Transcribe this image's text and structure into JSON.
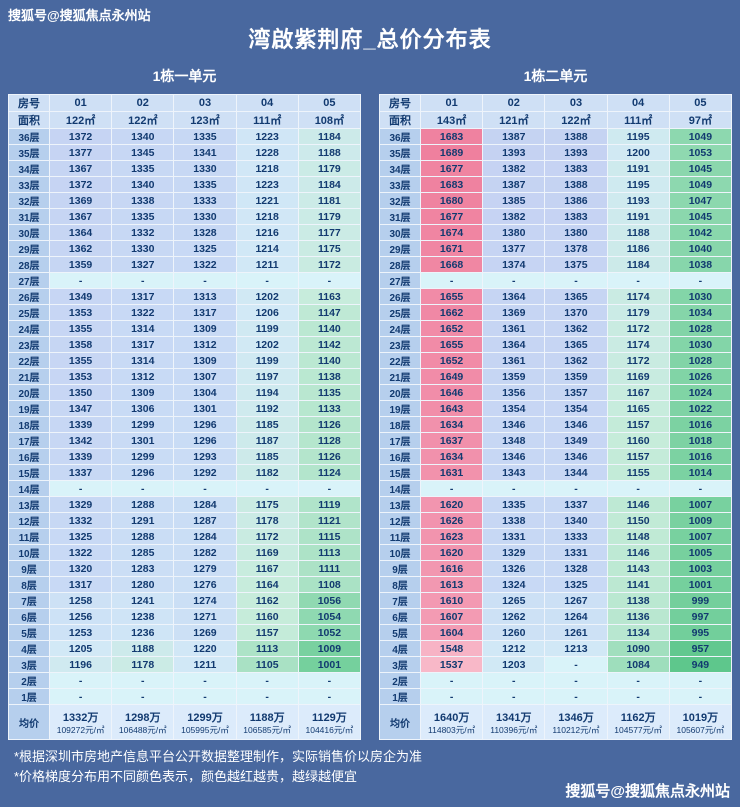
{
  "page": {
    "background": "#49689f",
    "watermark_top": "搜狐号@搜狐焦点永州站",
    "watermark_bottom": "搜狐号@搜狐焦点永州站",
    "title": "湾啟紫荆府_总价分布表",
    "notes": [
      "*根据深圳市房地产信息平台公开数据整理制作，实际销售价以房企为准",
      "*价格梯度分布用不同颜色表示，颜色越红越贵，越绿越便宜"
    ]
  },
  "heatmap": {
    "empty_color": "#d9f3f9",
    "stops": [
      [
        949,
        "#5ec78c"
      ],
      [
        1010,
        "#79d1a0"
      ],
      [
        1060,
        "#92dab3"
      ],
      [
        1110,
        "#abe2c6"
      ],
      [
        1160,
        "#c6ecda"
      ],
      [
        1205,
        "#d2e9f6"
      ],
      [
        1310,
        "#c8daf5"
      ],
      [
        1430,
        "#c4cff1"
      ],
      [
        1535,
        "#f8b9c9"
      ],
      [
        1620,
        "#f295af"
      ],
      [
        1690,
        "#ef809e"
      ]
    ]
  },
  "chart_data": [
    {
      "type": "table",
      "style": "price-heatmap",
      "subtitle": "1栋一单元",
      "row_header": "房号",
      "area_header": "面积",
      "units": [
        "01",
        "02",
        "03",
        "04",
        "05"
      ],
      "areas": [
        "122㎡",
        "122㎡",
        "123㎡",
        "111㎡",
        "108㎡"
      ],
      "floors": [
        "36层",
        "35层",
        "34层",
        "33层",
        "32层",
        "31层",
        "30层",
        "29层",
        "28层",
        "27层",
        "26层",
        "25层",
        "24层",
        "23层",
        "22层",
        "21层",
        "20层",
        "19层",
        "18层",
        "17层",
        "16层",
        "15层",
        "14层",
        "13层",
        "12层",
        "11层",
        "10层",
        "9层",
        "8层",
        "7层",
        "6层",
        "5层",
        "4层",
        "3层",
        "2层",
        "1层"
      ],
      "rows": [
        [
          1372,
          1340,
          1335,
          1223,
          1184
        ],
        [
          1377,
          1345,
          1341,
          1228,
          1188
        ],
        [
          1367,
          1335,
          1330,
          1218,
          1179
        ],
        [
          1372,
          1340,
          1335,
          1223,
          1184
        ],
        [
          1369,
          1338,
          1333,
          1221,
          1181
        ],
        [
          1367,
          1335,
          1330,
          1218,
          1179
        ],
        [
          1364,
          1332,
          1328,
          1216,
          1177
        ],
        [
          1362,
          1330,
          1325,
          1214,
          1175
        ],
        [
          1359,
          1327,
          1322,
          1211,
          1172
        ],
        [
          "-",
          "-",
          "-",
          "-",
          "-"
        ],
        [
          1349,
          1317,
          1313,
          1202,
          1163
        ],
        [
          1353,
          1322,
          1317,
          1206,
          1147
        ],
        [
          1355,
          1314,
          1309,
          1199,
          1140
        ],
        [
          1358,
          1317,
          1312,
          1202,
          1142
        ],
        [
          1355,
          1314,
          1309,
          1199,
          1140
        ],
        [
          1353,
          1312,
          1307,
          1197,
          1138
        ],
        [
          1350,
          1309,
          1304,
          1194,
          1135
        ],
        [
          1347,
          1306,
          1301,
          1192,
          1133
        ],
        [
          1339,
          1299,
          1296,
          1185,
          1126
        ],
        [
          1342,
          1301,
          1296,
          1187,
          1128
        ],
        [
          1339,
          1299,
          1293,
          1185,
          1126
        ],
        [
          1337,
          1296,
          1292,
          1182,
          1124
        ],
        [
          "-",
          "-",
          "-",
          "-",
          "-"
        ],
        [
          1329,
          1288,
          1284,
          1175,
          1119
        ],
        [
          1332,
          1291,
          1287,
          1178,
          1121
        ],
        [
          1325,
          1288,
          1284,
          1172,
          1115
        ],
        [
          1322,
          1285,
          1282,
          1169,
          1113
        ],
        [
          1320,
          1283,
          1279,
          1167,
          1111
        ],
        [
          1317,
          1280,
          1276,
          1164,
          1108
        ],
        [
          1258,
          1241,
          1274,
          1162,
          1056
        ],
        [
          1256,
          1238,
          1271,
          1160,
          1054
        ],
        [
          1253,
          1236,
          1269,
          1157,
          1052
        ],
        [
          1205,
          1188,
          1220,
          1113,
          1009
        ],
        [
          1196,
          1178,
          1211,
          1105,
          1001
        ],
        [
          "-",
          "-",
          "-",
          "-",
          "-"
        ],
        [
          "-",
          "-",
          "-",
          "-",
          "-"
        ]
      ],
      "average_label": "均价",
      "average_prices": [
        "1332万",
        "1298万",
        "1299万",
        "1188万",
        "1129万"
      ],
      "average_unit_prices": [
        "109272元/㎡",
        "106488元/㎡",
        "105995元/㎡",
        "106585元/㎡",
        "104416元/㎡"
      ]
    },
    {
      "type": "table",
      "style": "price-heatmap",
      "subtitle": "1栋二单元",
      "row_header": "房号",
      "area_header": "面积",
      "units": [
        "01",
        "02",
        "03",
        "04",
        "05"
      ],
      "areas": [
        "143㎡",
        "121㎡",
        "122㎡",
        "111㎡",
        "97㎡"
      ],
      "floors": [
        "36层",
        "35层",
        "34层",
        "33层",
        "32层",
        "31层",
        "30层",
        "29层",
        "28层",
        "27层",
        "26层",
        "25层",
        "24层",
        "23层",
        "22层",
        "21层",
        "20层",
        "19层",
        "18层",
        "17层",
        "16层",
        "15层",
        "14层",
        "13层",
        "12层",
        "11层",
        "10层",
        "9层",
        "8层",
        "7层",
        "6层",
        "5层",
        "4层",
        "3层",
        "2层",
        "1层"
      ],
      "rows": [
        [
          1683,
          1387,
          1388,
          1195,
          1049
        ],
        [
          1689,
          1393,
          1393,
          1200,
          1053
        ],
        [
          1677,
          1382,
          1383,
          1191,
          1045
        ],
        [
          1683,
          1387,
          1388,
          1195,
          1049
        ],
        [
          1680,
          1385,
          1386,
          1193,
          1047
        ],
        [
          1677,
          1382,
          1383,
          1191,
          1045
        ],
        [
          1674,
          1380,
          1380,
          1188,
          1042
        ],
        [
          1671,
          1377,
          1378,
          1186,
          1040
        ],
        [
          1668,
          1374,
          1375,
          1184,
          1038
        ],
        [
          "-",
          "-",
          "-",
          "-",
          "-"
        ],
        [
          1655,
          1364,
          1365,
          1174,
          1030
        ],
        [
          1662,
          1369,
          1370,
          1179,
          1034
        ],
        [
          1652,
          1361,
          1362,
          1172,
          1028
        ],
        [
          1655,
          1364,
          1365,
          1174,
          1030
        ],
        [
          1652,
          1361,
          1362,
          1172,
          1028
        ],
        [
          1649,
          1359,
          1359,
          1169,
          1026
        ],
        [
          1646,
          1356,
          1357,
          1167,
          1024
        ],
        [
          1643,
          1354,
          1354,
          1165,
          1022
        ],
        [
          1634,
          1346,
          1346,
          1157,
          1016
        ],
        [
          1637,
          1348,
          1349,
          1160,
          1018
        ],
        [
          1634,
          1346,
          1346,
          1157,
          1016
        ],
        [
          1631,
          1343,
          1344,
          1155,
          1014
        ],
        [
          "-",
          "-",
          "-",
          "-",
          "-"
        ],
        [
          1620,
          1335,
          1337,
          1146,
          1007
        ],
        [
          1626,
          1338,
          1340,
          1150,
          1009
        ],
        [
          1623,
          1331,
          1333,
          1148,
          1007
        ],
        [
          1620,
          1329,
          1331,
          1146,
          1005
        ],
        [
          1616,
          1326,
          1328,
          1143,
          1003
        ],
        [
          1613,
          1324,
          1325,
          1141,
          1001
        ],
        [
          1610,
          1265,
          1267,
          1138,
          999
        ],
        [
          1607,
          1262,
          1264,
          1136,
          997
        ],
        [
          1604,
          1260,
          1261,
          1134,
          995
        ],
        [
          1548,
          1212,
          1213,
          1090,
          957
        ],
        [
          1537,
          1203,
          "-",
          1084,
          949
        ],
        [
          "-",
          "-",
          "-",
          "-",
          "-"
        ],
        [
          "-",
          "-",
          "-",
          "-",
          "-"
        ]
      ],
      "average_label": "均价",
      "average_prices": [
        "1640万",
        "1341万",
        "1346万",
        "1162万",
        "1019万"
      ],
      "average_unit_prices": [
        "114803元/㎡",
        "110396元/㎡",
        "110212元/㎡",
        "104577元/㎡",
        "105607元/㎡"
      ]
    }
  ]
}
